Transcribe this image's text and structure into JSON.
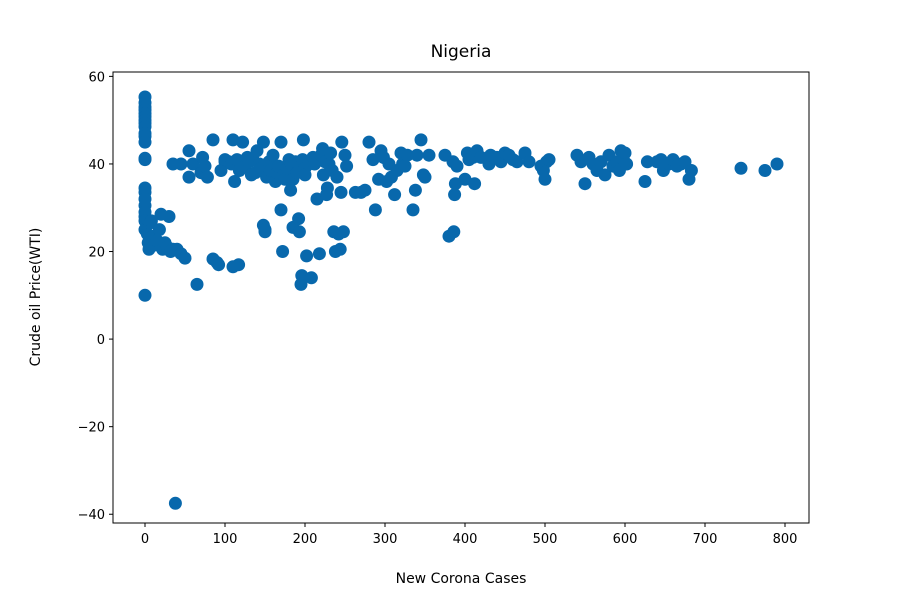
{
  "chart_data": {
    "type": "scatter",
    "title": "Nigeria",
    "xlabel": "New Corona Cases",
    "ylabel": "Crude oil Price(WTI)",
    "xlim": [
      -40,
      830
    ],
    "ylim": [
      -42,
      61
    ],
    "xticks": [
      0,
      100,
      200,
      300,
      400,
      500,
      600,
      700,
      800
    ],
    "yticks": [
      -40,
      -20,
      0,
      20,
      40,
      60
    ],
    "xtick_labels": [
      "0",
      "100",
      "200",
      "300",
      "400",
      "500",
      "600",
      "700",
      "800"
    ],
    "ytick_labels": [
      "−40",
      "−20",
      "0",
      "20",
      "40",
      "60"
    ],
    "grid": false,
    "marker_color": "#0868ac",
    "points": [
      [
        0,
        55.3
      ],
      [
        0,
        54.0
      ],
      [
        0,
        53.0
      ],
      [
        0,
        52.3
      ],
      [
        0,
        51.5
      ],
      [
        0,
        50.8
      ],
      [
        0,
        50.0
      ],
      [
        0,
        49.3
      ],
      [
        0,
        48.5
      ],
      [
        0,
        47.0
      ],
      [
        0,
        46.3
      ],
      [
        0,
        45.0
      ],
      [
        0,
        41.3
      ],
      [
        0,
        41.0
      ],
      [
        0,
        34.5
      ],
      [
        0,
        33.5
      ],
      [
        0,
        32.0
      ],
      [
        0,
        30.5
      ],
      [
        0,
        29.0
      ],
      [
        0,
        28.0
      ],
      [
        0,
        27.0
      ],
      [
        0,
        25.0
      ],
      [
        0,
        10.0
      ],
      [
        3,
        24.0
      ],
      [
        4,
        22.0
      ],
      [
        5,
        20.5
      ],
      [
        6,
        26.5
      ],
      [
        8,
        27.0
      ],
      [
        10,
        23.5
      ],
      [
        12,
        21.5
      ],
      [
        15,
        22.5
      ],
      [
        18,
        25.0
      ],
      [
        20,
        28.5
      ],
      [
        22,
        20.5
      ],
      [
        25,
        22.0
      ],
      [
        28,
        21.0
      ],
      [
        30,
        28.0
      ],
      [
        32,
        20.0
      ],
      [
        35,
        20.5
      ],
      [
        40,
        20.5
      ],
      [
        45,
        19.5
      ],
      [
        50,
        18.5
      ],
      [
        38,
        -37.5
      ],
      [
        35,
        40.0
      ],
      [
        45,
        40.0
      ],
      [
        55,
        43.0
      ],
      [
        55,
        37.0
      ],
      [
        60,
        40.0
      ],
      [
        65,
        12.5
      ],
      [
        70,
        38.0
      ],
      [
        72,
        41.5
      ],
      [
        75,
        39.5
      ],
      [
        78,
        37.0
      ],
      [
        85,
        45.5
      ],
      [
        85,
        18.3
      ],
      [
        90,
        17.5
      ],
      [
        92,
        17.0
      ],
      [
        95,
        38.5
      ],
      [
        100,
        40.5
      ],
      [
        100,
        41.0
      ],
      [
        105,
        40.5
      ],
      [
        108,
        40.0
      ],
      [
        110,
        16.5
      ],
      [
        110,
        45.5
      ],
      [
        112,
        36.0
      ],
      [
        115,
        41.0
      ],
      [
        117,
        17.0
      ],
      [
        118,
        38.5
      ],
      [
        120,
        40.0
      ],
      [
        122,
        45.0
      ],
      [
        125,
        39.5
      ],
      [
        128,
        41.5
      ],
      [
        130,
        40.5
      ],
      [
        133,
        37.5
      ],
      [
        135,
        41.0
      ],
      [
        138,
        38.0
      ],
      [
        140,
        43.0
      ],
      [
        143,
        40.0
      ],
      [
        145,
        39.0
      ],
      [
        148,
        45.0
      ],
      [
        148,
        26.0
      ],
      [
        150,
        25.0
      ],
      [
        150,
        24.5
      ],
      [
        152,
        37.0
      ],
      [
        155,
        40.5
      ],
      [
        157,
        38.5
      ],
      [
        160,
        42.0
      ],
      [
        163,
        36.0
      ],
      [
        165,
        38.0
      ],
      [
        167,
        39.5
      ],
      [
        170,
        45.0
      ],
      [
        170,
        29.5
      ],
      [
        172,
        20.0
      ],
      [
        173,
        37.5
      ],
      [
        175,
        36.5
      ],
      [
        178,
        39.0
      ],
      [
        180,
        41.0
      ],
      [
        182,
        34.0
      ],
      [
        183,
        40.0
      ],
      [
        185,
        25.5
      ],
      [
        185,
        36.5
      ],
      [
        188,
        40.5
      ],
      [
        190,
        38.0
      ],
      [
        192,
        27.5
      ],
      [
        193,
        24.5
      ],
      [
        195,
        12.5
      ],
      [
        196,
        14.5
      ],
      [
        197,
        41.0
      ],
      [
        198,
        45.5
      ],
      [
        200,
        39.0
      ],
      [
        200,
        37.5
      ],
      [
        202,
        19.0
      ],
      [
        205,
        40.0
      ],
      [
        208,
        14.0
      ],
      [
        210,
        41.5
      ],
      [
        212,
        40.0
      ],
      [
        215,
        32.0
      ],
      [
        218,
        19.5
      ],
      [
        220,
        42.0
      ],
      [
        222,
        43.5
      ],
      [
        223,
        37.5
      ],
      [
        225,
        40.5
      ],
      [
        227,
        33.0
      ],
      [
        228,
        34.5
      ],
      [
        230,
        40.0
      ],
      [
        232,
        42.5
      ],
      [
        234,
        38.5
      ],
      [
        236,
        24.5
      ],
      [
        238,
        20.0
      ],
      [
        240,
        37.0
      ],
      [
        242,
        24.0
      ],
      [
        244,
        20.5
      ],
      [
        245,
        33.5
      ],
      [
        246,
        45.0
      ],
      [
        248,
        24.5
      ],
      [
        250,
        42.0
      ],
      [
        252,
        39.5
      ],
      [
        263,
        33.5
      ],
      [
        270,
        33.5
      ],
      [
        275,
        34.0
      ],
      [
        280,
        45.0
      ],
      [
        285,
        41.0
      ],
      [
        288,
        29.5
      ],
      [
        292,
        36.5
      ],
      [
        295,
        43.0
      ],
      [
        298,
        41.5
      ],
      [
        302,
        36.0
      ],
      [
        305,
        40.0
      ],
      [
        308,
        37.0
      ],
      [
        312,
        33.0
      ],
      [
        315,
        38.5
      ],
      [
        320,
        42.5
      ],
      [
        322,
        40.0
      ],
      [
        325,
        39.5
      ],
      [
        328,
        42.0
      ],
      [
        335,
        29.5
      ],
      [
        338,
        34.0
      ],
      [
        340,
        42.0
      ],
      [
        345,
        45.5
      ],
      [
        348,
        37.5
      ],
      [
        350,
        37.0
      ],
      [
        355,
        42.0
      ],
      [
        375,
        42.0
      ],
      [
        380,
        23.5
      ],
      [
        385,
        40.5
      ],
      [
        386,
        24.5
      ],
      [
        387,
        33.0
      ],
      [
        388,
        35.5
      ],
      [
        390,
        39.5
      ],
      [
        400,
        36.5
      ],
      [
        403,
        42.5
      ],
      [
        405,
        41.0
      ],
      [
        410,
        41.5
      ],
      [
        412,
        35.5
      ],
      [
        415,
        43.0
      ],
      [
        420,
        41.5
      ],
      [
        430,
        40.0
      ],
      [
        432,
        42.0
      ],
      [
        440,
        41.5
      ],
      [
        445,
        40.5
      ],
      [
        450,
        42.5
      ],
      [
        455,
        42.0
      ],
      [
        460,
        41.0
      ],
      [
        465,
        40.5
      ],
      [
        475,
        42.5
      ],
      [
        480,
        40.5
      ],
      [
        495,
        39.5
      ],
      [
        498,
        38.5
      ],
      [
        500,
        36.5
      ],
      [
        502,
        40.5
      ],
      [
        505,
        41.0
      ],
      [
        540,
        42.0
      ],
      [
        545,
        40.5
      ],
      [
        550,
        35.5
      ],
      [
        555,
        41.5
      ],
      [
        560,
        40.0
      ],
      [
        565,
        38.5
      ],
      [
        570,
        40.5
      ],
      [
        575,
        37.5
      ],
      [
        580,
        42.0
      ],
      [
        585,
        39.5
      ],
      [
        590,
        40.5
      ],
      [
        593,
        38.5
      ],
      [
        595,
        43.0
      ],
      [
        598,
        41.0
      ],
      [
        600,
        42.5
      ],
      [
        602,
        40.0
      ],
      [
        625,
        36.0
      ],
      [
        628,
        40.5
      ],
      [
        640,
        40.5
      ],
      [
        645,
        41.0
      ],
      [
        648,
        38.5
      ],
      [
        655,
        40.0
      ],
      [
        660,
        41.0
      ],
      [
        665,
        39.5
      ],
      [
        670,
        40.0
      ],
      [
        675,
        40.5
      ],
      [
        680,
        36.5
      ],
      [
        683,
        38.5
      ],
      [
        745,
        39.0
      ],
      [
        775,
        38.5
      ],
      [
        790,
        40.0
      ]
    ]
  }
}
